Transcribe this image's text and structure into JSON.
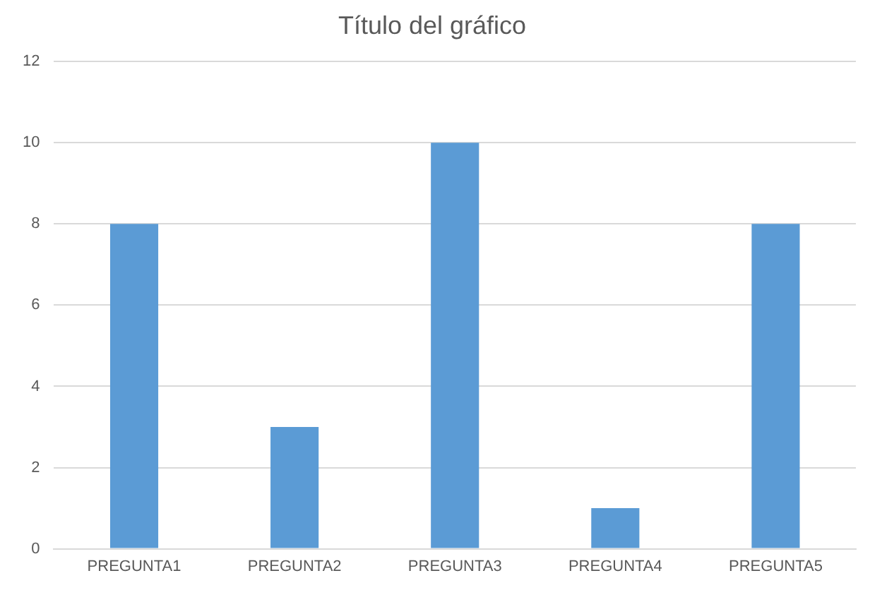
{
  "chart_data": {
    "type": "bar",
    "title": "Título del gráfico",
    "categories": [
      "PREGUNTA1",
      "PREGUNTA2",
      "PREGUNTA3",
      "PREGUNTA4",
      "PREGUNTA5"
    ],
    "values": [
      8,
      3,
      10,
      1,
      8
    ],
    "color": "#5b9bd5",
    "ylim": [
      0,
      12
    ],
    "yticks": [
      0,
      2,
      4,
      6,
      8,
      10,
      12
    ],
    "grid": "y"
  }
}
